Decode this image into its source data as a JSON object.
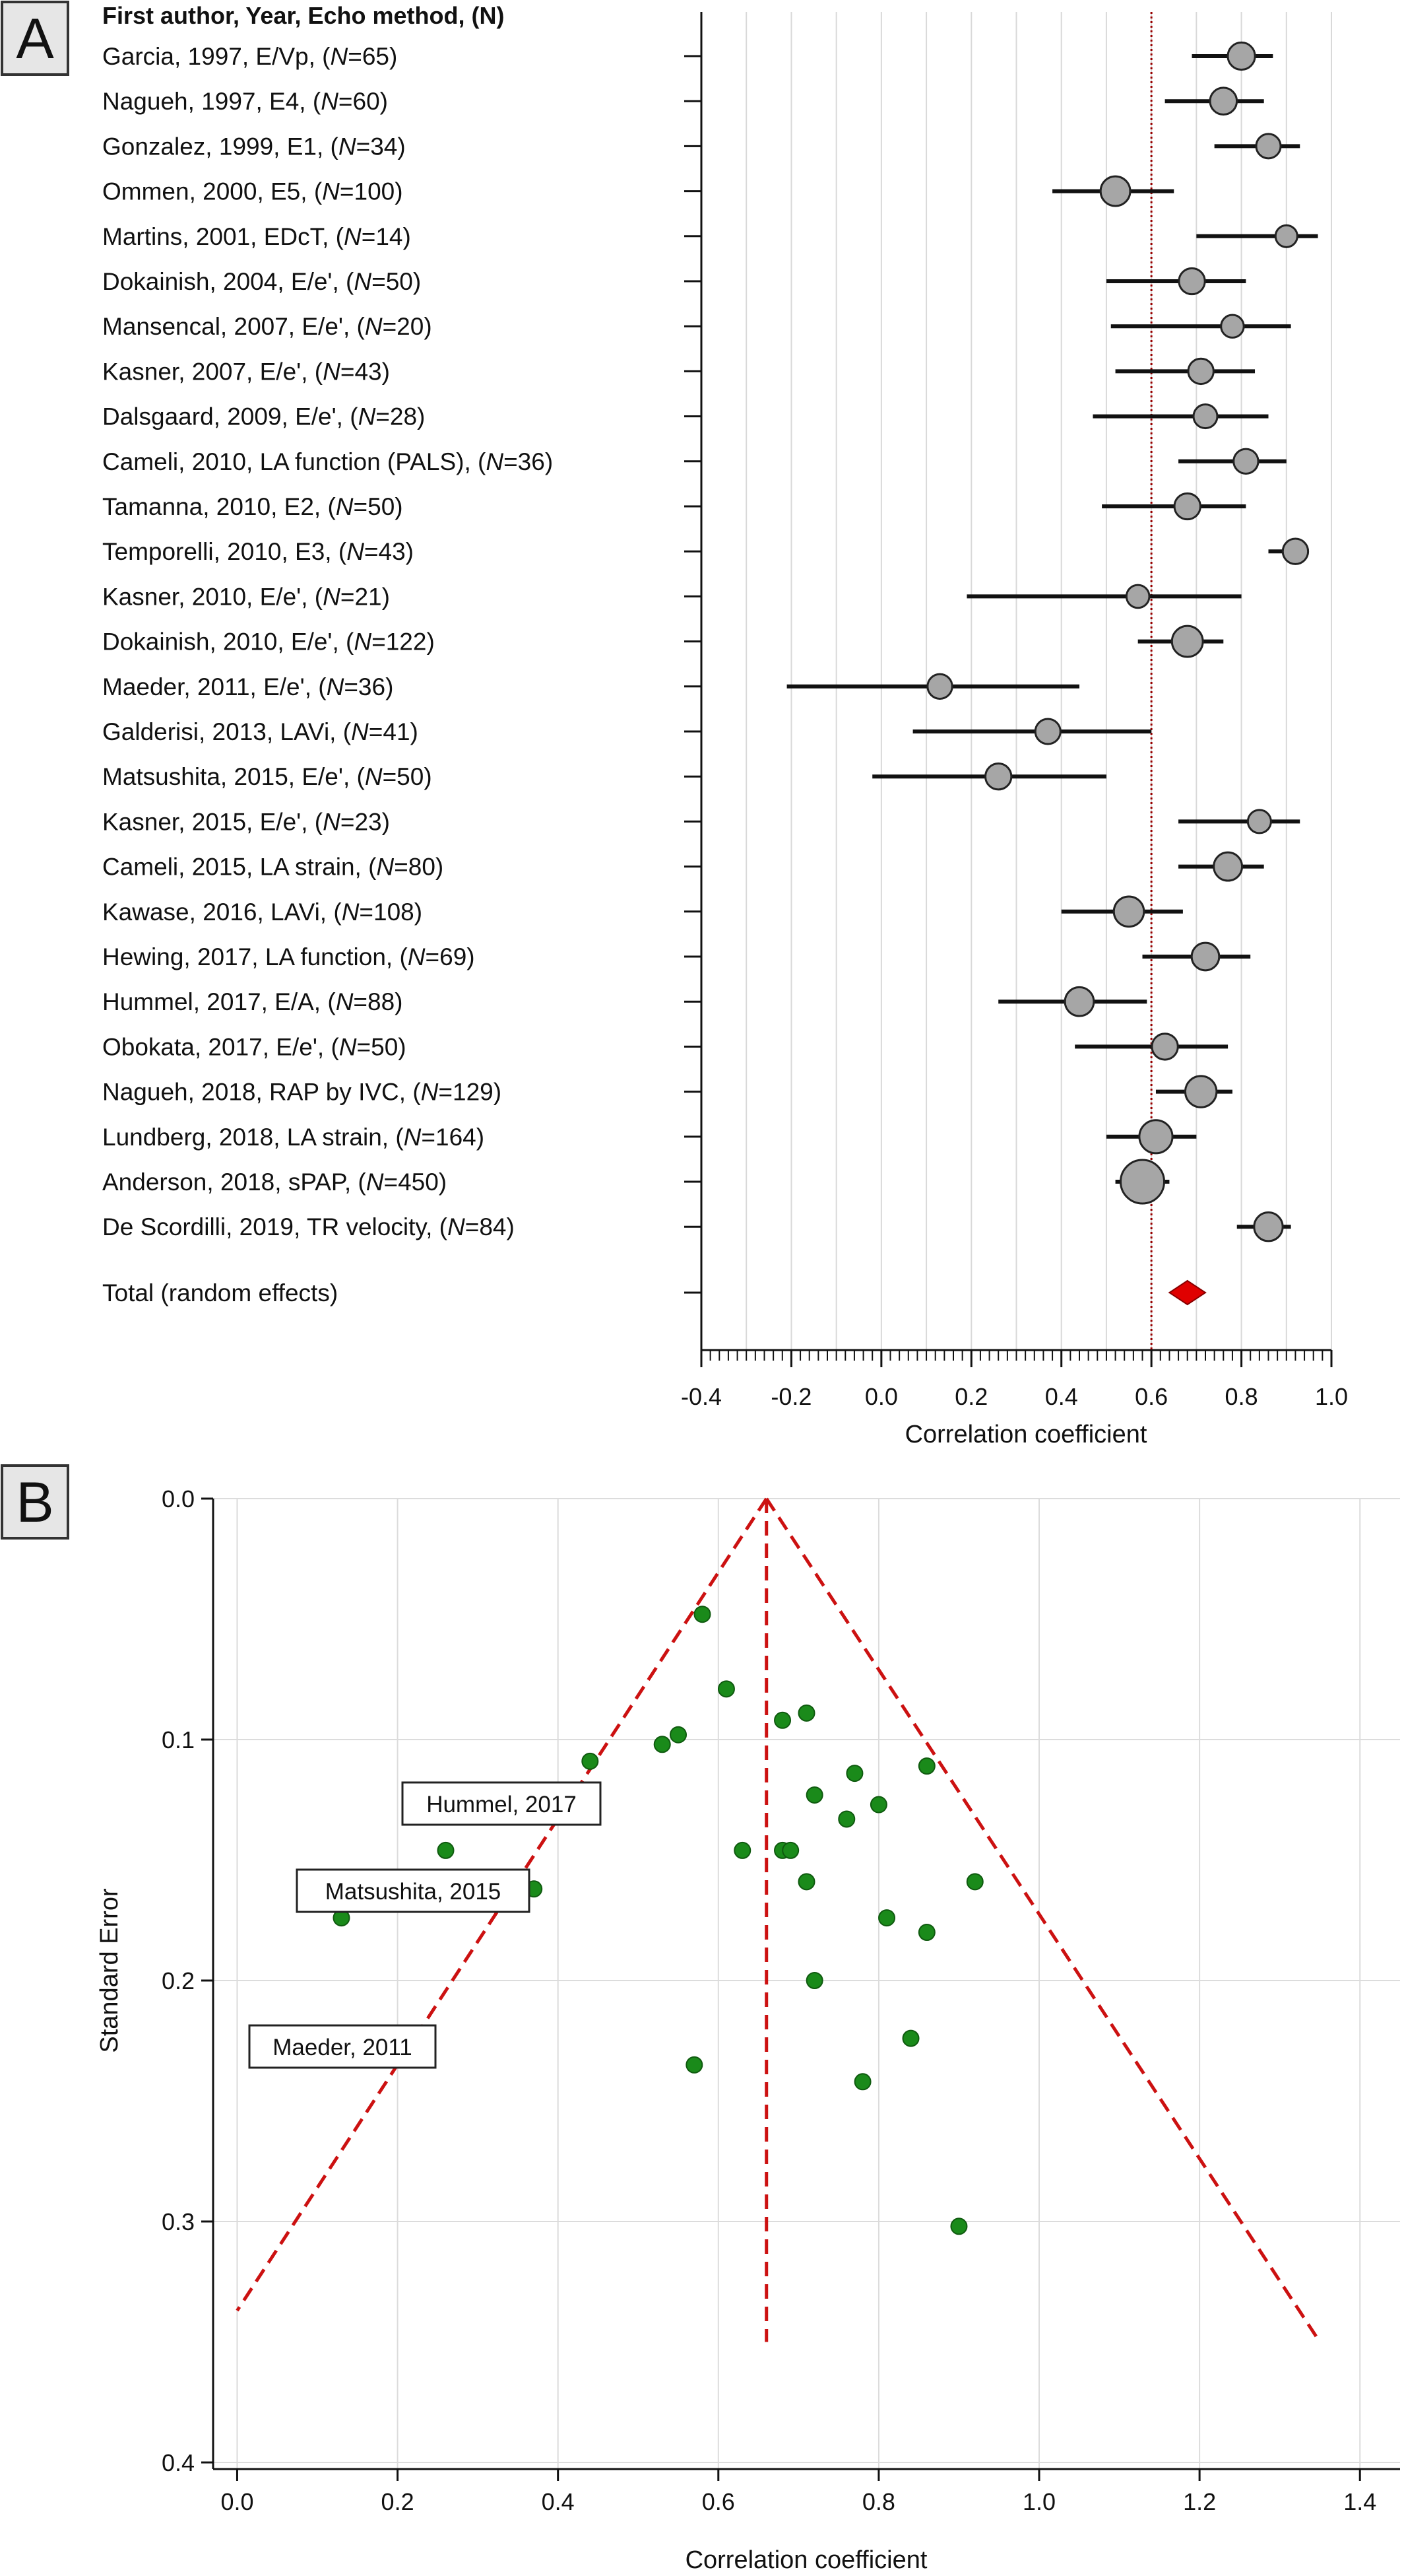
{
  "panel_a": {
    "letter": "A",
    "header": "First author, Year, Echo method, (N)",
    "xlabel": "Correlation coefficient",
    "reference_line": 0.6,
    "marker_color": "#a6a6a6",
    "ref_line_color": "#990000",
    "diamond_color": "#e00000"
  },
  "panel_b": {
    "letter": "B",
    "xlabel": "Correlation coefficient",
    "ylabel": "Standard Error",
    "point_color": "#1a8a1a",
    "funnel_color": "#cc1111"
  },
  "chart_data": [
    {
      "type": "forest",
      "title": "",
      "xlabel": "Correlation coefficient",
      "xlim": [
        -0.4,
        1.0
      ],
      "xticks": [
        "-0.4",
        "-0.2",
        "0.0",
        "0.2",
        "0.4",
        "0.6",
        "0.8",
        "1.0"
      ],
      "reference_line": 0.6,
      "studies": [
        {
          "label": "Garcia, 1997, E/Vp, (N=65)",
          "r": 0.8,
          "lo": 0.69,
          "hi": 0.87
        },
        {
          "label": "Nagueh, 1997, E4, (N=60)",
          "r": 0.76,
          "lo": 0.63,
          "hi": 0.85
        },
        {
          "label": "Gonzalez, 1999, E1, (N=34)",
          "r": 0.86,
          "lo": 0.74,
          "hi": 0.93
        },
        {
          "label": "Ommen, 2000, E5, (N=100)",
          "r": 0.52,
          "lo": 0.38,
          "hi": 0.65
        },
        {
          "label": "Martins, 2001, EDcT, (N=14)",
          "r": 0.9,
          "lo": 0.7,
          "hi": 0.97
        },
        {
          "label": "Dokainish, 2004, E/e', (N=50)",
          "r": 0.69,
          "lo": 0.5,
          "hi": 0.81
        },
        {
          "label": "Mansencal, 2007, E/e', (N=20)",
          "r": 0.78,
          "lo": 0.51,
          "hi": 0.91
        },
        {
          "label": "Kasner, 2007, E/e', (N=43)",
          "r": 0.71,
          "lo": 0.52,
          "hi": 0.83
        },
        {
          "label": "Dalsgaard, 2009, E/e', (N=28)",
          "r": 0.72,
          "lo": 0.47,
          "hi": 0.86
        },
        {
          "label": "Cameli, 2010, LA function (PALS), (N=36)",
          "r": 0.81,
          "lo": 0.66,
          "hi": 0.9
        },
        {
          "label": "Tamanna, 2010, E2, (N=50)",
          "r": 0.68,
          "lo": 0.49,
          "hi": 0.81
        },
        {
          "label": "Temporelli, 2010, E3, (N=43)",
          "r": 0.92,
          "lo": 0.86,
          "hi": 0.95
        },
        {
          "label": "Kasner, 2010, E/e', (N=21)",
          "r": 0.57,
          "lo": 0.19,
          "hi": 0.8
        },
        {
          "label": "Dokainish, 2010, E/e', (N=122)",
          "r": 0.68,
          "lo": 0.57,
          "hi": 0.76
        },
        {
          "label": "Maeder, 2011, E/e', (N=36)",
          "r": 0.13,
          "lo": -0.21,
          "hi": 0.44
        },
        {
          "label": "Galderisi, 2013, LAVi, (N=41)",
          "r": 0.37,
          "lo": 0.07,
          "hi": 0.6
        },
        {
          "label": "Matsushita, 2015, E/e', (N=50)",
          "r": 0.26,
          "lo": -0.02,
          "hi": 0.5
        },
        {
          "label": "Kasner, 2015, E/e', (N=23)",
          "r": 0.84,
          "lo": 0.66,
          "hi": 0.93
        },
        {
          "label": "Cameli, 2015, LA strain, (N=80)",
          "r": 0.77,
          "lo": 0.66,
          "hi": 0.85
        },
        {
          "label": "Kawase, 2016, LAVi, (N=108)",
          "r": 0.55,
          "lo": 0.4,
          "hi": 0.67
        },
        {
          "label": "Hewing, 2017, LA function, (N=69)",
          "r": 0.72,
          "lo": 0.58,
          "hi": 0.82
        },
        {
          "label": "Hummel, 2017, E/A, (N=88)",
          "r": 0.44,
          "lo": 0.26,
          "hi": 0.59
        },
        {
          "label": "Obokata, 2017, E/e', (N=50)",
          "r": 0.63,
          "lo": 0.43,
          "hi": 0.77
        },
        {
          "label": "Nagueh, 2018, RAP by IVC, (N=129)",
          "r": 0.71,
          "lo": 0.61,
          "hi": 0.78
        },
        {
          "label": "Lundberg, 2018, LA strain, (N=164)",
          "r": 0.61,
          "lo": 0.5,
          "hi": 0.7
        },
        {
          "label": "Anderson, 2018, sPAP, (N=450)",
          "r": 0.58,
          "lo": 0.52,
          "hi": 0.64
        },
        {
          "label": "De Scordilli, 2019, TR velocity, (N=84)",
          "r": 0.86,
          "lo": 0.79,
          "hi": 0.91
        }
      ],
      "total": {
        "label": "Total (random effects)",
        "r": 0.68,
        "lo": 0.64,
        "hi": 0.72
      }
    },
    {
      "type": "scatter",
      "title": "",
      "xlabel": "Correlation coefficient",
      "ylabel": "Standard Error",
      "xlim": [
        -0.03,
        1.45
      ],
      "ylim": [
        0.4,
        0.0
      ],
      "xticks": [
        "0.0",
        "0.2",
        "0.4",
        "0.6",
        "0.8",
        "1.0",
        "1.2",
        "1.4"
      ],
      "yticks": [
        "0.0",
        "0.1",
        "0.2",
        "0.3",
        "0.4"
      ],
      "grid": true,
      "funnel": {
        "center": 0.66,
        "base_se": 0.35,
        "left_x": 0.0,
        "right_x": 1.35
      },
      "points": [
        {
          "x": 0.13,
          "y": 0.174
        },
        {
          "x": 0.26,
          "y": 0.146
        },
        {
          "x": 0.37,
          "y": 0.162
        },
        {
          "x": 0.44,
          "y": 0.109
        },
        {
          "x": 0.53,
          "y": 0.102
        },
        {
          "x": 0.55,
          "y": 0.098
        },
        {
          "x": 0.57,
          "y": 0.235
        },
        {
          "x": 0.58,
          "y": 0.048
        },
        {
          "x": 0.61,
          "y": 0.079
        },
        {
          "x": 0.63,
          "y": 0.146
        },
        {
          "x": 0.68,
          "y": 0.092
        },
        {
          "x": 0.68,
          "y": 0.146
        },
        {
          "x": 0.69,
          "y": 0.146
        },
        {
          "x": 0.71,
          "y": 0.089
        },
        {
          "x": 0.71,
          "y": 0.159
        },
        {
          "x": 0.72,
          "y": 0.123
        },
        {
          "x": 0.72,
          "y": 0.2
        },
        {
          "x": 0.76,
          "y": 0.133
        },
        {
          "x": 0.77,
          "y": 0.114
        },
        {
          "x": 0.78,
          "y": 0.242
        },
        {
          "x": 0.8,
          "y": 0.127
        },
        {
          "x": 0.81,
          "y": 0.174
        },
        {
          "x": 0.84,
          "y": 0.224
        },
        {
          "x": 0.86,
          "y": 0.111
        },
        {
          "x": 0.86,
          "y": 0.18
        },
        {
          "x": 0.9,
          "y": 0.302
        },
        {
          "x": 0.92,
          "y": 0.159
        }
      ],
      "annotations": [
        {
          "text": "Hummel, 2017",
          "x": 0.26,
          "y": 0.146
        },
        {
          "text": "Matsushita, 2015",
          "x": 0.13,
          "y": 0.174
        },
        {
          "text": "Maeder, 2011",
          "x": 0.13,
          "y": 0.0
        }
      ]
    }
  ]
}
